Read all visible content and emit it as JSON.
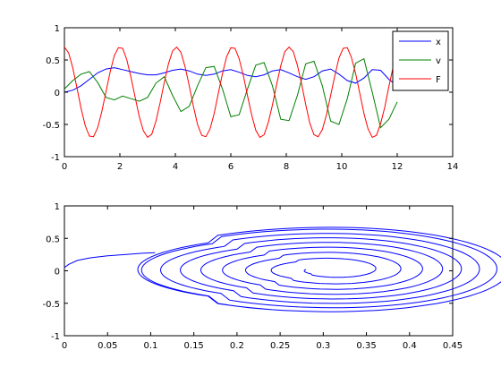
{
  "chart_data": [
    {
      "type": "line",
      "title": "",
      "xlabel": "",
      "ylabel": "",
      "xlim": [
        0,
        14
      ],
      "ylim": [
        -1,
        1
      ],
      "xticks": [
        "0",
        "2",
        "4",
        "6",
        "8",
        "10",
        "12",
        "14"
      ],
      "yticks": [
        "-1",
        "-0.5",
        "0",
        "0.5",
        "1"
      ],
      "grid": false,
      "legend": "top-right",
      "series": [
        {
          "name": "x",
          "color": "#0000ff",
          "x": [
            0,
            0.3,
            0.6,
            0.9,
            1.2,
            1.5,
            1.8,
            2.1,
            2.4,
            2.7,
            3.0,
            3.3,
            3.6,
            3.9,
            4.2,
            4.5,
            4.8,
            5.1,
            5.4,
            5.7,
            6.0,
            6.3,
            6.6,
            6.9,
            7.2,
            7.5,
            7.8,
            8.1,
            8.4,
            8.7,
            9.0,
            9.3,
            9.6,
            9.9,
            10.2,
            10.5,
            10.8,
            11.1,
            11.4,
            11.7,
            12.0
          ],
          "y": [
            0.0,
            0.03,
            0.1,
            0.2,
            0.3,
            0.36,
            0.38,
            0.35,
            0.32,
            0.29,
            0.27,
            0.27,
            0.3,
            0.34,
            0.36,
            0.33,
            0.28,
            0.26,
            0.28,
            0.33,
            0.35,
            0.31,
            0.26,
            0.24,
            0.27,
            0.33,
            0.35,
            0.3,
            0.24,
            0.2,
            0.24,
            0.33,
            0.36,
            0.28,
            0.18,
            0.14,
            0.22,
            0.35,
            0.34,
            0.2,
            0.1
          ]
        },
        {
          "name": "v",
          "color": "#008000",
          "x": [
            0,
            0.3,
            0.6,
            0.9,
            1.2,
            1.5,
            1.8,
            2.1,
            2.4,
            2.7,
            3.0,
            3.3,
            3.6,
            3.9,
            4.2,
            4.5,
            4.8,
            5.1,
            5.4,
            5.7,
            6.0,
            6.3,
            6.6,
            6.9,
            7.2,
            7.5,
            7.8,
            8.1,
            8.4,
            8.7,
            9.0,
            9.3,
            9.6,
            9.9,
            10.2,
            10.5,
            10.8,
            11.1,
            11.4,
            11.7,
            12.0
          ],
          "y": [
            0.05,
            0.18,
            0.28,
            0.32,
            0.15,
            -0.08,
            -0.12,
            -0.06,
            -0.1,
            -0.14,
            -0.08,
            0.14,
            0.24,
            -0.05,
            -0.3,
            -0.22,
            0.1,
            0.38,
            0.4,
            0.05,
            -0.38,
            -0.35,
            0.05,
            0.42,
            0.46,
            0.1,
            -0.42,
            -0.44,
            -0.05,
            0.44,
            0.48,
            0.1,
            -0.45,
            -0.5,
            -0.1,
            0.45,
            0.52,
            0.0,
            -0.55,
            -0.42,
            -0.15
          ]
        },
        {
          "name": "F",
          "color": "#ff0000",
          "x": [
            0,
            0.15,
            0.3,
            0.45,
            0.6,
            0.75,
            0.9,
            1.05,
            1.2,
            1.35,
            1.5,
            1.65,
            1.8,
            1.95,
            2.1,
            2.25,
            2.4,
            2.55,
            2.7,
            2.85,
            3.0,
            3.15,
            3.3,
            3.45,
            3.6,
            3.75,
            3.9,
            4.05,
            4.2,
            4.35,
            4.5,
            4.65,
            4.8,
            4.95,
            5.1,
            5.25,
            5.4,
            5.55,
            5.7,
            5.85,
            6.0,
            6.15,
            6.3,
            6.45,
            6.6,
            6.75,
            6.9,
            7.05,
            7.2,
            7.35,
            7.5,
            7.65,
            7.8,
            7.95,
            8.1,
            8.25,
            8.4,
            8.55,
            8.7,
            8.85,
            9.0,
            9.15,
            9.3,
            9.45,
            9.6,
            9.75,
            9.9,
            10.05,
            10.2,
            10.35,
            10.5,
            10.65,
            10.8,
            10.95,
            11.1,
            11.25,
            11.4,
            11.55,
            11.7,
            11.85,
            12.0
          ],
          "y": [
            0.7,
            0.61,
            0.38,
            0.07,
            -0.25,
            -0.52,
            -0.68,
            -0.69,
            -0.55,
            -0.3,
            0.01,
            0.32,
            0.57,
            0.69,
            0.68,
            0.5,
            0.23,
            -0.08,
            -0.38,
            -0.6,
            -0.7,
            -0.65,
            -0.45,
            -0.17,
            0.15,
            0.44,
            0.64,
            0.7,
            0.62,
            0.4,
            0.1,
            -0.22,
            -0.5,
            -0.67,
            -0.69,
            -0.57,
            -0.33,
            -0.02,
            0.29,
            0.55,
            0.69,
            0.68,
            0.52,
            0.26,
            -0.05,
            -0.35,
            -0.59,
            -0.7,
            -0.66,
            -0.47,
            -0.2,
            0.12,
            0.41,
            0.63,
            0.7,
            0.63,
            0.42,
            0.13,
            -0.19,
            -0.48,
            -0.66,
            -0.69,
            -0.58,
            -0.35,
            -0.05,
            0.26,
            0.53,
            0.68,
            0.69,
            0.54,
            0.29,
            -0.02,
            -0.33,
            -0.57,
            -0.7,
            -0.67,
            -0.49,
            -0.23,
            0.09,
            0.39,
            0.6
          ]
        }
      ]
    },
    {
      "type": "line",
      "title": "",
      "xlabel": "",
      "ylabel": "",
      "xlim": [
        0,
        0.45
      ],
      "ylim": [
        -1,
        1
      ],
      "xticks": [
        "0",
        "0.05",
        "0.1",
        "0.15",
        "0.2",
        "0.25",
        "0.3",
        "0.35",
        "0.4",
        "0.45"
      ],
      "yticks": [
        "-1",
        "-0.5",
        "0",
        "0.5",
        "1"
      ],
      "grid": false,
      "legend": "none",
      "phase_portrait": {
        "color": "#0000ff",
        "lead_in": {
          "x": [
            0.0,
            0.005,
            0.015,
            0.03,
            0.05,
            0.07,
            0.09,
            0.105
          ],
          "y": [
            0.05,
            0.1,
            0.16,
            0.2,
            0.23,
            0.25,
            0.27,
            0.28
          ]
        },
        "center": [
          0.31,
          0.02
        ],
        "x_radius_range": [
          0.03,
          0.205
        ],
        "y_radius_range": [
          0.08,
          0.65
        ],
        "turns": 9
      }
    }
  ]
}
